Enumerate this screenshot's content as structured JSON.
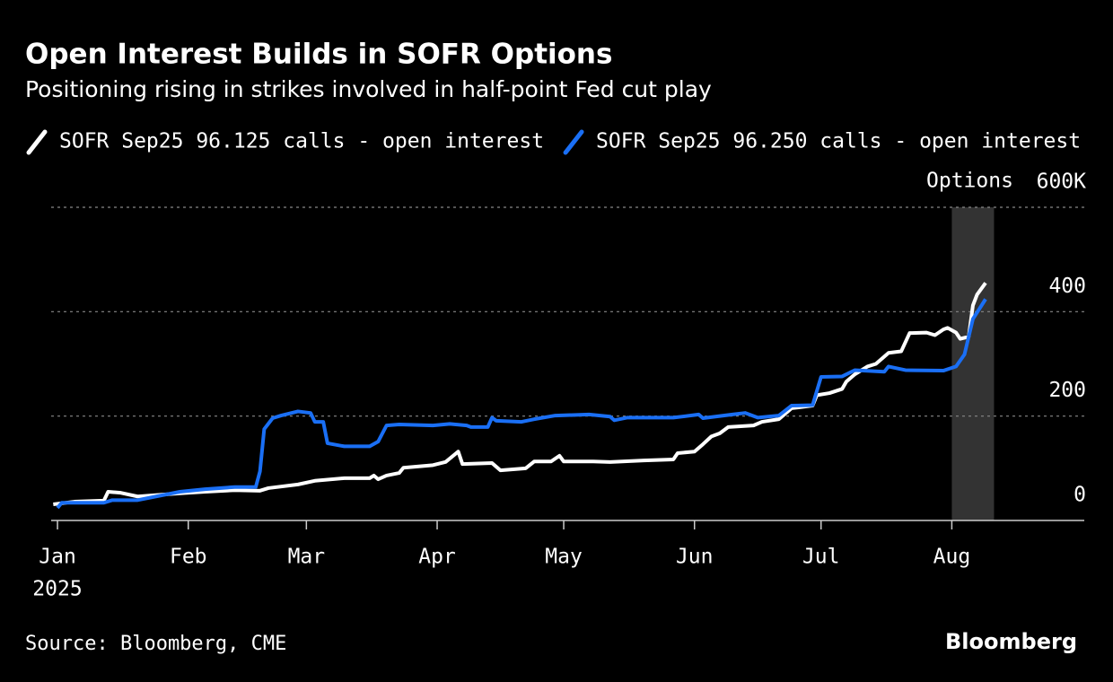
{
  "chart_data": {
    "type": "line",
    "title": "Open Interest Builds in SOFR Options",
    "subtitle": "Positioning rising in strikes involved in half-point Fed cut play",
    "ylabel": "Options",
    "x_year_label": "2025",
    "source": "Source: Bloomberg, CME",
    "brand": "Bloomberg",
    "xlim": [
      -1.5,
      243.4
    ],
    "xticks": [
      {
        "value": 0,
        "label": "Jan"
      },
      {
        "value": 31,
        "label": "Feb"
      },
      {
        "value": 59,
        "label": "Mar"
      },
      {
        "value": 90,
        "label": "Apr"
      },
      {
        "value": 120,
        "label": "May"
      },
      {
        "value": 151,
        "label": "Jun"
      },
      {
        "value": 181,
        "label": "Jul"
      },
      {
        "value": 212,
        "label": "Aug"
      }
    ],
    "ylim": [
      0,
      600
    ],
    "yticks": [
      0,
      200,
      400,
      {
        "value": 600,
        "label": "600K"
      }
    ],
    "grid": true,
    "shade_x": [
      212,
      222
    ],
    "shade_color": "#333333",
    "series": [
      {
        "name": "SOFR Sep25 96.125 calls - open interest",
        "color": "#ffffff",
        "x": [
          -1,
          4,
          11,
          12,
          15,
          19,
          29,
          35,
          42,
          48,
          50,
          57,
          61,
          68,
          74,
          75,
          76,
          78,
          81,
          82,
          89,
          92,
          95,
          96,
          103,
          105,
          111,
          113,
          117,
          119,
          120,
          127,
          131,
          139,
          146,
          147,
          151,
          153,
          155,
          157,
          159,
          165,
          167,
          171,
          174,
          179,
          180,
          183,
          186,
          187,
          189,
          192,
          194,
          197,
          200,
          202,
          206,
          208,
          210,
          211,
          213,
          214,
          216,
          217,
          218,
          220
        ],
        "values": [
          31,
          36,
          38,
          55,
          53,
          46,
          52,
          55,
          58,
          57,
          62,
          69,
          76,
          81,
          81,
          86,
          79,
          86,
          91,
          101,
          106,
          112,
          132,
          108,
          110,
          96,
          100,
          113,
          113,
          124,
          113,
          113,
          112,
          115,
          117,
          129,
          132,
          146,
          161,
          167,
          179,
          182,
          189,
          194,
          215,
          220,
          240,
          244,
          252,
          266,
          280,
          295,
          300,
          321,
          324,
          359,
          360,
          355,
          366,
          369,
          360,
          348,
          352,
          412,
          433,
          455
        ]
      },
      {
        "name": "SOFR Sep25 96.250 calls - open interest",
        "color": "#1a6ff5",
        "x": [
          0,
          1,
          11,
          13,
          19,
          29,
          35,
          42,
          47,
          48,
          49,
          51,
          53,
          57,
          60,
          61,
          63,
          64,
          68,
          74,
          76,
          78,
          81,
          89,
          93,
          97,
          98,
          102,
          103,
          104,
          110,
          113,
          118,
          126,
          131,
          132,
          135,
          146,
          152,
          153,
          160,
          163,
          166,
          171,
          174,
          179,
          181,
          186,
          189,
          196,
          197,
          201,
          210,
          213,
          215,
          217,
          220
        ],
        "values": [
          24,
          34,
          34,
          39,
          39,
          55,
          60,
          64,
          64,
          94,
          175,
          196,
          201,
          209,
          206,
          189,
          189,
          148,
          142,
          142,
          151,
          182,
          184,
          182,
          185,
          182,
          179,
          179,
          197,
          191,
          189,
          194,
          201,
          203,
          199,
          192,
          197,
          197,
          203,
          196,
          203,
          206,
          197,
          201,
          220,
          221,
          275,
          276,
          288,
          285,
          295,
          288,
          287,
          295,
          318,
          386,
          424
        ]
      }
    ]
  }
}
